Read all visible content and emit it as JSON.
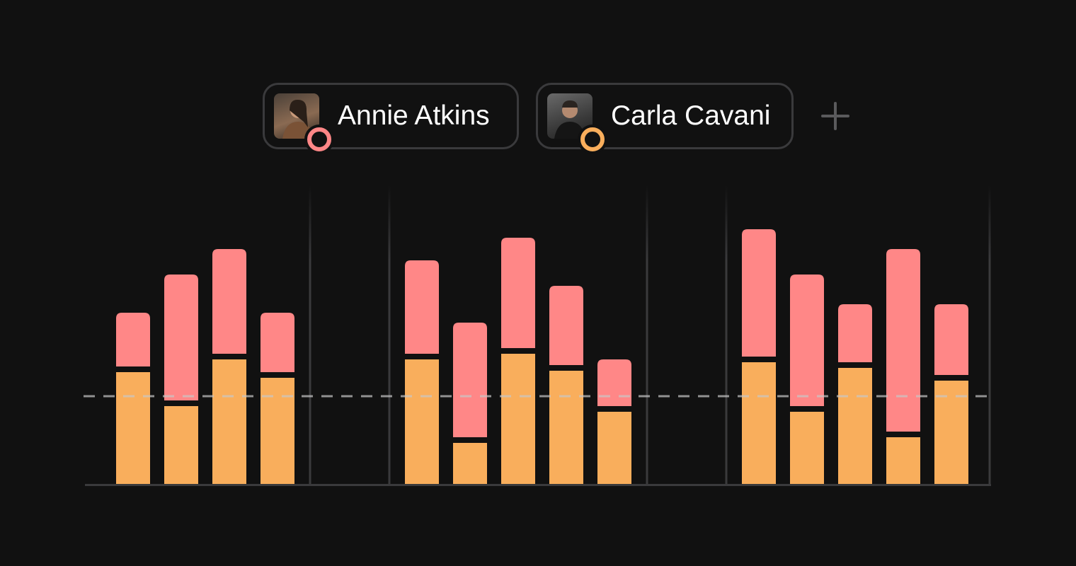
{
  "users": [
    {
      "name": "Annie Atkins",
      "color": "#ff8787",
      "avatar_bg": [
        "#6b5a4a",
        "#b08a6a",
        "#3a2e26"
      ]
    },
    {
      "name": "Carla Cavani",
      "color": "#f9ae5c",
      "avatar_bg": [
        "#5a5a5a",
        "#c9b8a5",
        "#222222"
      ]
    }
  ],
  "add_icon": "plus-icon",
  "chart_data": {
    "type": "bar",
    "stacked": true,
    "groups": [
      {
        "bars": [
          {
            "bottom": 158,
            "top": 76
          },
          {
            "bottom": 110,
            "top": 178
          },
          {
            "bottom": 176,
            "top": 148
          },
          {
            "bottom": 150,
            "top": 84
          }
        ]
      },
      {
        "bars": [
          {
            "bottom": 176,
            "top": 132
          },
          {
            "bottom": 58,
            "top": 162
          },
          {
            "bottom": 184,
            "top": 156
          },
          {
            "bottom": 160,
            "top": 112
          },
          {
            "bottom": 102,
            "top": 66
          }
        ]
      },
      {
        "bars": [
          {
            "bottom": 172,
            "top": 180
          },
          {
            "bottom": 102,
            "top": 186
          },
          {
            "bottom": 164,
            "top": 82
          },
          {
            "bottom": 66,
            "top": 258
          },
          {
            "bottom": 146,
            "top": 100
          }
        ]
      }
    ],
    "series": [
      {
        "name": "Carla Cavani",
        "part": "bottom",
        "color": "#f9ae5c"
      },
      {
        "name": "Annie Atkins",
        "part": "top",
        "color": "#ff8787"
      }
    ],
    "reference_line": 124,
    "ylim": [
      0,
      420
    ],
    "grid": false
  }
}
